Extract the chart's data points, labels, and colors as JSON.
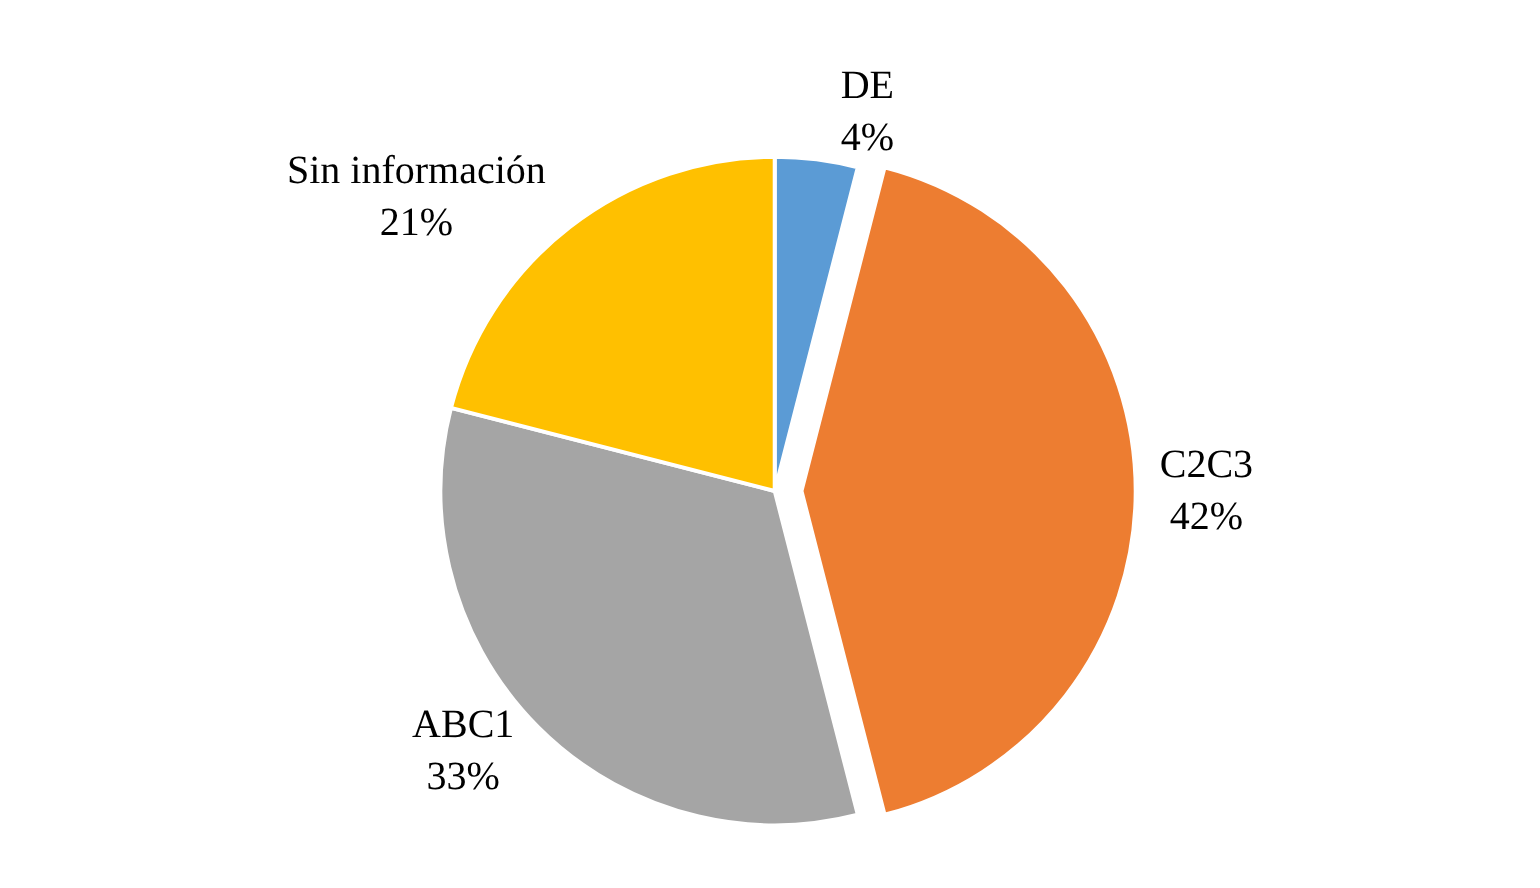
{
  "chart_data": {
    "type": "pie",
    "categories": [
      "DE",
      "C2C3",
      "ABC1",
      "Sin información"
    ],
    "values": [
      4,
      42,
      33,
      21
    ],
    "value_labels": [
      "4%",
      "42%",
      "33%",
      "21%"
    ],
    "colors": [
      "#5b9bd5",
      "#ed7d31",
      "#a5a5a5",
      "#ffc000"
    ],
    "legend": false
  }
}
